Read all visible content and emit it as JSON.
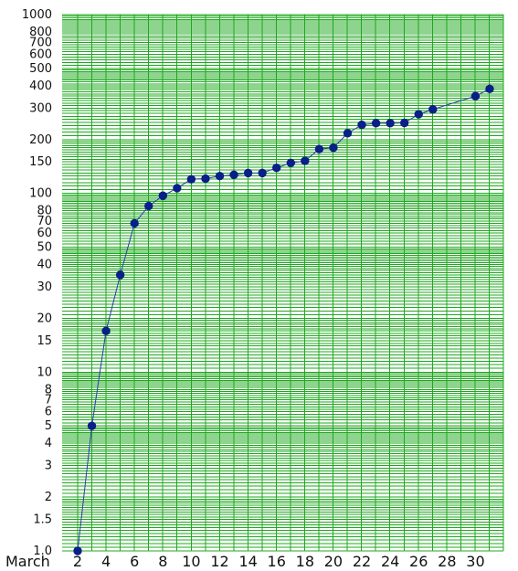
{
  "chart_data": {
    "type": "line",
    "xlabel": "March",
    "ylabel": "",
    "title": "",
    "x_tick_labels": [
      "2",
      "4",
      "6",
      "8",
      "10",
      "12",
      "14",
      "16",
      "18",
      "20",
      "22",
      "24",
      "26",
      "28",
      "30"
    ],
    "y_tick_labels": [
      "1.0",
      "1.5",
      "2",
      "3",
      "4",
      "5",
      "6",
      "7",
      "8",
      "10",
      "15",
      "20",
      "30",
      "40",
      "50",
      "60",
      "70",
      "80",
      "100",
      "150",
      "200",
      "300",
      "400",
      "500",
      "600",
      "700",
      "800",
      "1000"
    ],
    "xlim": [
      2,
      31
    ],
    "ylim": [
      1,
      1000
    ],
    "yscale": "log",
    "grid": true,
    "colors": {
      "grid": "#1ea81e",
      "line": "#2b3aa7",
      "marker": "#0a1f87",
      "text": "#111111",
      "background": "#ffffff"
    },
    "series": [
      {
        "x": [
          2,
          3,
          4,
          5,
          6,
          7,
          8,
          9,
          10,
          11,
          12,
          13,
          14,
          15,
          16,
          17,
          18,
          19,
          20,
          21,
          22,
          23,
          24,
          25,
          26,
          27,
          30,
          31
        ],
        "values": [
          1,
          5,
          17,
          35,
          68,
          85,
          97,
          107,
          120,
          121,
          125,
          127,
          130,
          130,
          139,
          148,
          152,
          177,
          180,
          217,
          242,
          247,
          247,
          248,
          277,
          295,
          350,
          384
        ]
      }
    ]
  }
}
